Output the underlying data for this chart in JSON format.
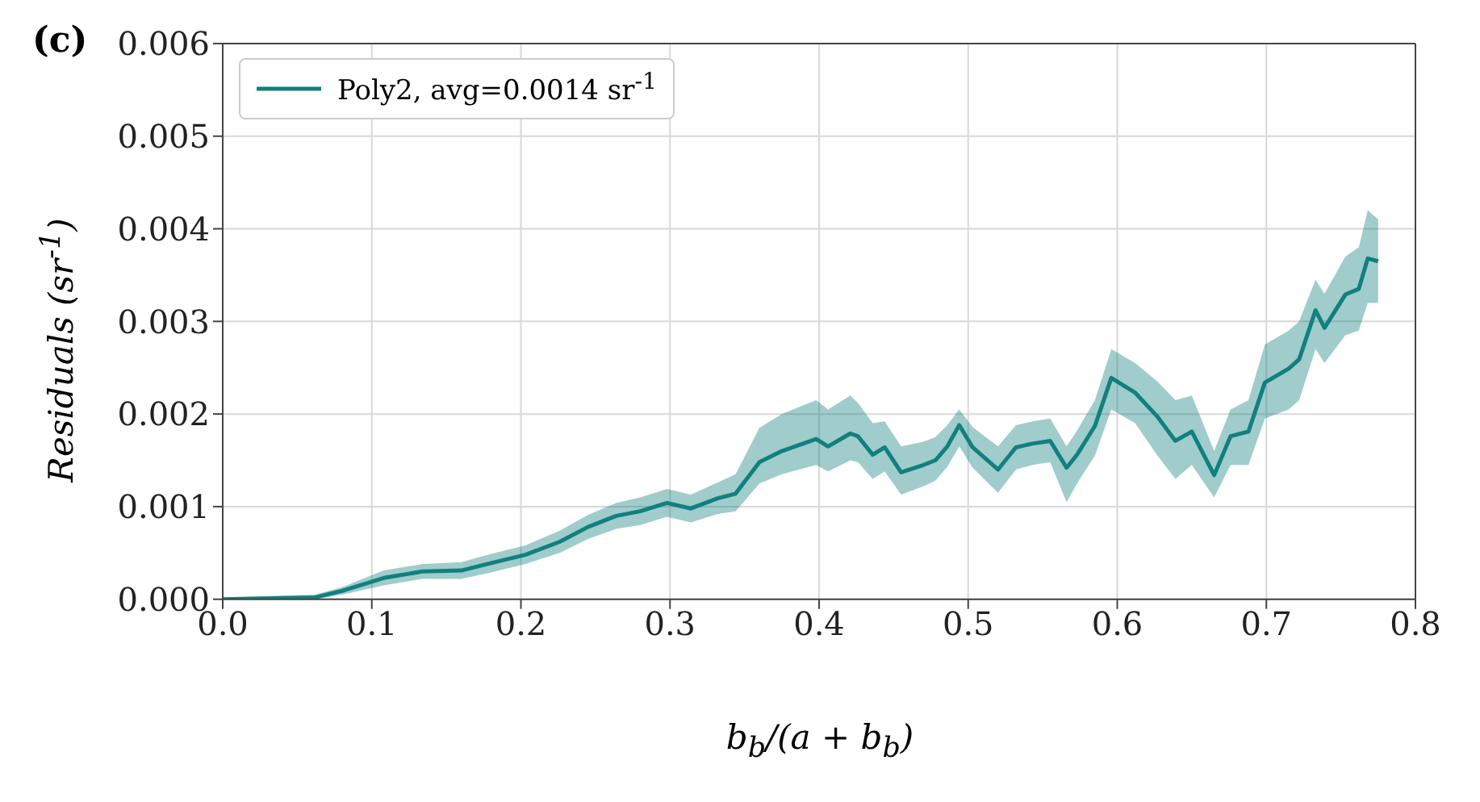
{
  "chart_data": {
    "type": "line",
    "annotations": [
      "(c)"
    ],
    "xlabel": "b$_{b}$/(a + b$_{b}$)",
    "ylabel": "Residuals (sr$^{-1}$)",
    "xlim": [
      0,
      0.8
    ],
    "xticks": [
      {
        "value": 0,
        "label": "0.0"
      },
      {
        "value": 0.1,
        "label": "0.1"
      },
      {
        "value": 0.2,
        "label": "0.2"
      },
      {
        "value": 0.3,
        "label": "0.3"
      },
      {
        "value": 0.4,
        "label": "0.4"
      },
      {
        "value": 0.5,
        "label": "0.5"
      },
      {
        "value": 0.6,
        "label": "0.6"
      },
      {
        "value": 0.7,
        "label": "0.7"
      },
      {
        "value": 0.8,
        "label": "0.8"
      }
    ],
    "ylim": [
      0,
      0.006
    ],
    "yticks": [
      {
        "value": 0,
        "label": "0.000"
      },
      {
        "value": 0.001,
        "label": "0.001"
      },
      {
        "value": 0.002,
        "label": "0.002"
      },
      {
        "value": 0.003,
        "label": "0.003"
      },
      {
        "value": 0.004,
        "label": "0.004"
      },
      {
        "value": 0.005,
        "label": "0.005"
      },
      {
        "value": 0.006,
        "label": "0.006"
      }
    ],
    "grid": true,
    "legend": "top left",
    "marker": "none",
    "line_style": "solid",
    "series": [
      {
        "name": "Poly2, avg=0.0014 sr$^{-1}$",
        "color": "#11807f",
        "x": [
          0,
          0.062,
          0.08,
          0.108,
          0.134,
          0.16,
          0.18,
          0.203,
          0.226,
          0.245,
          0.264,
          0.28,
          0.298,
          0.314,
          0.332,
          0.344,
          0.36,
          0.375,
          0.398,
          0.406,
          0.421,
          0.426,
          0.436,
          0.444,
          0.455,
          0.47,
          0.478,
          0.486,
          0.494,
          0.503,
          0.52,
          0.532,
          0.543,
          0.555,
          0.566,
          0.573,
          0.585,
          0.596,
          0.612,
          0.627,
          0.639,
          0.65,
          0.665,
          0.676,
          0.688,
          0.699,
          0.715,
          0.722,
          0.733,
          0.739,
          0.753,
          0.762,
          0.768,
          0.775
        ],
        "values": [
          0,
          2e-05,
          9e-05,
          0.00023,
          0.0003,
          0.00031,
          0.00039,
          0.00048,
          0.00062,
          0.00078,
          0.0009,
          0.00095,
          0.00104,
          0.00098,
          0.00109,
          0.00114,
          0.00148,
          0.0016,
          0.00173,
          0.00165,
          0.00179,
          0.00176,
          0.00156,
          0.00164,
          0.00137,
          0.00145,
          0.0015,
          0.00165,
          0.00188,
          0.00164,
          0.0014,
          0.00164,
          0.00168,
          0.00171,
          0.00142,
          0.00156,
          0.00187,
          0.00239,
          0.00223,
          0.00197,
          0.00171,
          0.00181,
          0.00134,
          0.00176,
          0.00181,
          0.00234,
          0.00249,
          0.00259,
          0.00312,
          0.00293,
          0.00329,
          0.00335,
          0.00368,
          0.00365
        ],
        "lower": [
          0,
          0,
          5e-05,
          0.00015,
          0.00022,
          0.00022,
          0.00029,
          0.00038,
          0.0005,
          0.00065,
          0.00076,
          0.0008,
          0.00089,
          0.00083,
          0.00092,
          0.00095,
          0.00125,
          0.00135,
          0.00145,
          0.00138,
          0.0015,
          0.00148,
          0.0013,
          0.00138,
          0.00113,
          0.00122,
          0.00128,
          0.00143,
          0.00165,
          0.00142,
          0.00115,
          0.0014,
          0.00145,
          0.00148,
          0.00105,
          0.00125,
          0.00155,
          0.00205,
          0.0019,
          0.00155,
          0.0013,
          0.00145,
          0.0011,
          0.00145,
          0.00145,
          0.00195,
          0.00205,
          0.00215,
          0.0027,
          0.00255,
          0.00285,
          0.0029,
          0.0032,
          0.0032
        ],
        "upper": [
          2e-05,
          5e-05,
          0.00013,
          0.00031,
          0.00038,
          0.0004,
          0.00049,
          0.00058,
          0.00074,
          0.00091,
          0.00104,
          0.0011,
          0.00119,
          0.00113,
          0.00126,
          0.00135,
          0.00185,
          0.002,
          0.00215,
          0.00205,
          0.0022,
          0.00212,
          0.0019,
          0.00192,
          0.00165,
          0.0017,
          0.00175,
          0.00188,
          0.00205,
          0.00186,
          0.00165,
          0.00188,
          0.00192,
          0.00195,
          0.00165,
          0.00182,
          0.00215,
          0.0027,
          0.00255,
          0.00235,
          0.00215,
          0.0022,
          0.0016,
          0.00205,
          0.00215,
          0.00275,
          0.0029,
          0.003,
          0.00345,
          0.0033,
          0.0037,
          0.0038,
          0.0042,
          0.0041
        ]
      }
    ]
  }
}
